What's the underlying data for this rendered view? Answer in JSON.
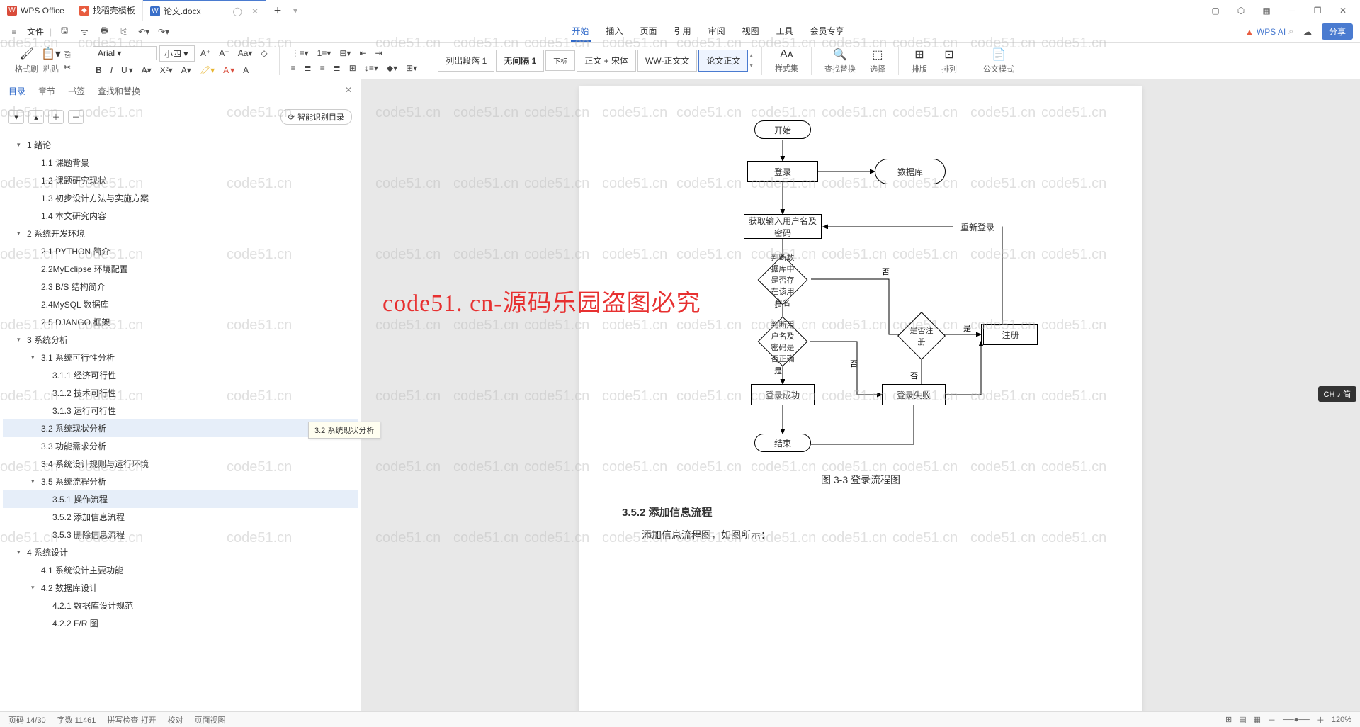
{
  "tabs": {
    "t1": "WPS Office",
    "t2": "找稻壳模板",
    "t3": "论文.docx"
  },
  "menubar": {
    "file": "文件",
    "tabs": [
      "开始",
      "插入",
      "页面",
      "引用",
      "审阅",
      "视图",
      "工具",
      "会员专享"
    ],
    "ai": "WPS AI",
    "share": "分享"
  },
  "ribbon": {
    "format_painter": "格式刷",
    "paste": "粘贴",
    "font": "Arial",
    "size": "小四",
    "styles": {
      "s1": "列出段落 1",
      "s2": "无间隔 1",
      "s3": "下标",
      "s4": "正文 + 宋体",
      "s5": "WW-正文文",
      "s6": "论文正文"
    },
    "styleset": "样式集",
    "findrepl": "查找替换",
    "select": "选择",
    "sort": "排版",
    "align": "排列",
    "docmode": "公文模式"
  },
  "sidebar": {
    "tabs": {
      "toc": "目录",
      "chapter": "章节",
      "bookmark": "书签",
      "find": "查找和替换"
    },
    "smart": "智能识别目录",
    "tooltip": "3.2  系统现状分析"
  },
  "toc": [
    {
      "l": 1,
      "t": "1  绪论",
      "a": 1
    },
    {
      "l": 2,
      "t": "1.1  课题背景"
    },
    {
      "l": 2,
      "t": "1.2  课题研究现状"
    },
    {
      "l": 2,
      "t": "1.3  初步设计方法与实施方案"
    },
    {
      "l": 2,
      "t": "1.4  本文研究内容"
    },
    {
      "l": 1,
      "t": "2  系统开发环境",
      "a": 1
    },
    {
      "l": 2,
      "t": "2.1 PYTHON 简介"
    },
    {
      "l": 2,
      "t": "2.2MyEclipse 环境配置"
    },
    {
      "l": 2,
      "t": "2.3 B/S 结构简介"
    },
    {
      "l": 2,
      "t": "2.4MySQL 数据库"
    },
    {
      "l": 2,
      "t": "2.5 DJANGO 框架"
    },
    {
      "l": 1,
      "t": "3  系统分析",
      "a": 1
    },
    {
      "l": 2,
      "t": "3.1  系统可行性分析",
      "a": 1
    },
    {
      "l": 3,
      "t": "3.1.1  经济可行性"
    },
    {
      "l": 3,
      "t": "3.1.2  技术可行性"
    },
    {
      "l": 3,
      "t": "3.1.3  运行可行性"
    },
    {
      "l": 2,
      "t": "3.2  系统现状分析",
      "sel": 1
    },
    {
      "l": 2,
      "t": "3.3  功能需求分析"
    },
    {
      "l": 2,
      "t": "3.4  系统设计规则与运行环境"
    },
    {
      "l": 2,
      "t": "3.5 系统流程分析",
      "a": 1
    },
    {
      "l": 3,
      "t": "3.5.1 操作流程",
      "sel": 1
    },
    {
      "l": 3,
      "t": "3.5.2 添加信息流程"
    },
    {
      "l": 3,
      "t": "3.5.3 删除信息流程"
    },
    {
      "l": 1,
      "t": "4  系统设计",
      "a": 1
    },
    {
      "l": 2,
      "t": "4.1  系统设计主要功能"
    },
    {
      "l": 2,
      "t": "4.2  数据库设计",
      "a": 1
    },
    {
      "l": 3,
      "t": "4.2.1  数据库设计规范"
    },
    {
      "l": 3,
      "t": "4.2.2 F/R 图"
    }
  ],
  "flowchart": {
    "nodes": {
      "start": "开始",
      "login": "登录",
      "db": "数据库",
      "getinput": "获取输入用户名及密码",
      "relogin": "重新登录",
      "checkdb": "判断数据库中是否存在该用户名",
      "checkpwd": "判断用户名及密码是否正确",
      "isreg": "是否注册",
      "register": "注册",
      "success": "登录成功",
      "fail": "登录失败",
      "end": "结束"
    },
    "labels": {
      "yes": "是",
      "no": "否"
    },
    "caption": "图 3-3 登录流程图",
    "section": "3.5.2  添加信息流程",
    "body": "添加信息流程图，如图所示："
  },
  "watermark_text": "code51.cn",
  "big_watermark": "code51. cn-源码乐园盗图必究",
  "status": {
    "page": "页码 14/30",
    "words": "字数 11461",
    "mode": "拼写检查  打开",
    "track": "校对",
    "layout": "页面视图",
    "zoom": "120%"
  },
  "lang": "CH ♪ 简",
  "colors": {
    "accent": "#4a7bd0",
    "bg": "#f5f5f5"
  }
}
